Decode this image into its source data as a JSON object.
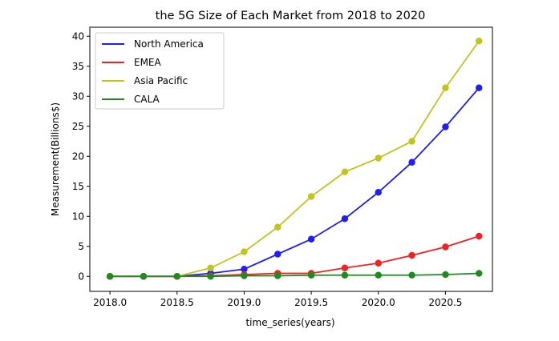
{
  "chart_data": {
    "type": "line",
    "title": "the 5G Size of Each Market from 2018 to 2020",
    "xlabel": "time_series(years)",
    "ylabel": "Measurement(Billions$)",
    "xlim": [
      2017.85,
      2020.85
    ],
    "ylim": [
      -2.5,
      41.5
    ],
    "xticks": [
      2018.0,
      2018.5,
      2019.0,
      2019.5,
      2020.0,
      2020.5
    ],
    "xtick_labels": [
      "2018.0",
      "2018.5",
      "2019.0",
      "2019.5",
      "2020.0",
      "2020.5"
    ],
    "yticks": [
      0,
      5,
      10,
      15,
      20,
      25,
      30,
      35,
      40
    ],
    "ytick_labels": [
      "0",
      "5",
      "10",
      "15",
      "20",
      "25",
      "30",
      "35",
      "40"
    ],
    "grid": false,
    "legend_position": "top-left",
    "x": [
      2018.0,
      2018.25,
      2018.5,
      2018.75,
      2019.0,
      2019.25,
      2019.5,
      2019.75,
      2020.0,
      2020.25,
      2020.5,
      2020.75
    ],
    "series": [
      {
        "name": "North America",
        "color": "#1f1ff5",
        "values": [
          0,
          0,
          0,
          0.5,
          1.2,
          3.7,
          6.2,
          9.6,
          14.0,
          19.0,
          24.9,
          31.4
        ]
      },
      {
        "name": "EMEA",
        "color": "#f5201f",
        "values": [
          0,
          0,
          0,
          0.1,
          0.3,
          0.5,
          0.5,
          1.4,
          2.2,
          3.5,
          4.9,
          6.7
        ]
      },
      {
        "name": "Asia Pacific",
        "color": "#c4c41f",
        "values": [
          0,
          0,
          0,
          1.4,
          4.1,
          8.2,
          13.3,
          17.4,
          19.7,
          22.5,
          31.4,
          39.2
        ]
      },
      {
        "name": "CALA",
        "color": "#1f8a1f",
        "values": [
          0,
          0,
          0,
          0,
          0.1,
          0.1,
          0.2,
          0.2,
          0.2,
          0.2,
          0.3,
          0.5
        ]
      }
    ]
  }
}
